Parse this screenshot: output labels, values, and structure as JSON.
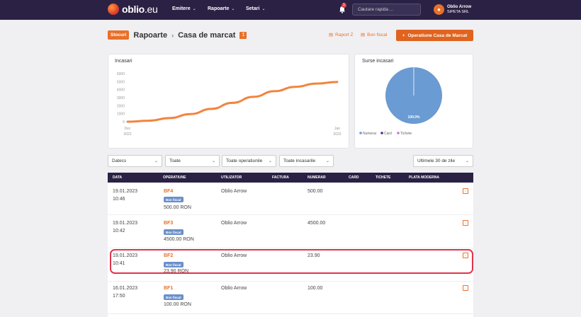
{
  "brand": {
    "logo_main": "oblio",
    "logo_suffix": ".eu"
  },
  "nav": [
    {
      "label": "Emitere"
    },
    {
      "label": "Rapoarte"
    },
    {
      "label": "Setari"
    }
  ],
  "notifications": {
    "count": "1"
  },
  "search": {
    "placeholder": "Cautare rapida ..."
  },
  "user": {
    "name": "Oblio Arrow",
    "company": "SIPETA SRL"
  },
  "breadcrumb": {
    "badge": "Stocuri",
    "level1": "Rapoarte",
    "level2": "Casa de marcat"
  },
  "actions": {
    "raport_z": "Raport Z",
    "bon_fiscal": "Bon fiscal",
    "operation_button": "Operatiune Casa de Marcat"
  },
  "colors": {
    "accent": "#e8702a",
    "header_bg": "#2b2145",
    "highlight": "#e0334b",
    "line": "#f2843e",
    "pie": "#6a9bd2"
  },
  "chart_data": [
    {
      "type": "line",
      "title": "Incasari",
      "x": [
        "Dec 2022",
        "Jan 2023"
      ],
      "y_ticks": [
        0,
        1000,
        2000,
        3000,
        4000,
        5000,
        6000
      ],
      "ylim": [
        0,
        6000
      ],
      "series": [
        {
          "values": [
            {
              "x": 0,
              "y": 0
            },
            {
              "x": 0.1,
              "y": 120
            },
            {
              "x": 0.2,
              "y": 450
            },
            {
              "x": 0.3,
              "y": 950
            },
            {
              "x": 0.4,
              "y": 1600
            },
            {
              "x": 0.5,
              "y": 2350
            },
            {
              "x": 0.6,
              "y": 3100
            },
            {
              "x": 0.7,
              "y": 3800
            },
            {
              "x": 0.8,
              "y": 4350
            },
            {
              "x": 0.9,
              "y": 4750
            },
            {
              "x": 1.0,
              "y": 4950
            }
          ]
        }
      ],
      "grid": false,
      "legend": "none"
    },
    {
      "type": "pie",
      "title": "Surse incasari",
      "slices": [
        {
          "label": "Numerar",
          "value": 100.0,
          "color": "#6a9bd2"
        },
        {
          "label": "Card",
          "value": 0,
          "color": "#5a2a8a"
        },
        {
          "label": "Tichete",
          "value": 0,
          "color": "#c77ad6"
        }
      ],
      "slice_label": "100.0%",
      "legend": "bottom-left"
    }
  ],
  "filters": {
    "company": "Datecs",
    "all": "Toate",
    "operations": "Toate operatiunile",
    "receipts": "Toate incasarile",
    "period": "Ultimele 30 de zile"
  },
  "table": {
    "headers": [
      "DATA",
      "OPERATIUNE",
      "UTILIZATOR",
      "FACTURA",
      "NUMERAR",
      "CARD",
      "TICHETE",
      "PLATA MODERNA"
    ],
    "rows": [
      {
        "date": "19.01.2023",
        "time": "10:46",
        "op": "BF4",
        "tag": "Bon fiscal",
        "amount": "500.00 RON",
        "user": "Oblio Arrow",
        "cash": "500.00"
      },
      {
        "date": "19.01.2023",
        "time": "10:42",
        "op": "BF3",
        "tag": "Bon fiscal",
        "amount": "4500.00 RON",
        "user": "Oblio Arrow",
        "cash": "4500.00"
      },
      {
        "date": "19.01.2023",
        "time": "10:41",
        "op": "BF2",
        "tag": "Bon fiscal",
        "amount": "23.90 RON",
        "user": "Oblio Arrow",
        "cash": "23.90"
      },
      {
        "date": "16.01.2023",
        "time": "17:50",
        "op": "BF1",
        "tag": "Bon fiscal",
        "amount": "100.00 RON",
        "user": "Oblio Arrow",
        "cash": "100.00"
      }
    ]
  }
}
